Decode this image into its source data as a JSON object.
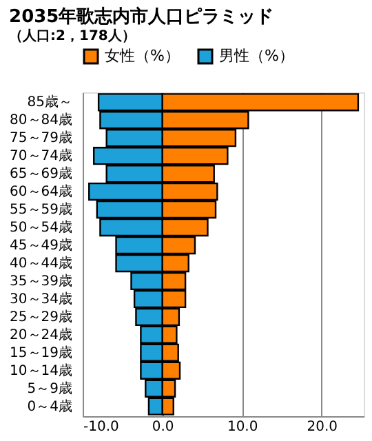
{
  "chart_data": {
    "type": "bar",
    "orientation": "horizontal",
    "title": "2035年歌志内市人口ピラミッド",
    "subtitle": "（人口:2，178人）",
    "categories": [
      "85歳～",
      "80～84歳",
      "75～79歳",
      "70～74歳",
      "65～69歳",
      "60～64歳",
      "55～59歳",
      "50～54歳",
      "45～49歳",
      "40～44歳",
      "35～39歳",
      "30～34歳",
      "25～29歳",
      "20～24歳",
      "15～19歳",
      "10～14歳",
      "5～9歳",
      "0～4歳"
    ],
    "series": [
      {
        "name": "女性（%）",
        "color": "#ff8000",
        "values": [
          24.6,
          10.8,
          9.2,
          8.2,
          6.5,
          6.9,
          6.7,
          5.7,
          4.1,
          3.3,
          2.9,
          2.9,
          2.1,
          1.8,
          2.0,
          2.2,
          1.6,
          1.4
        ]
      },
      {
        "name": "男性（%）",
        "color": "#1ea0d8",
        "values": [
          -8.0,
          -7.8,
          -7.0,
          -8.6,
          -7.0,
          -9.2,
          -8.2,
          -7.8,
          -5.8,
          -5.8,
          -3.9,
          -3.5,
          -3.3,
          -2.7,
          -2.7,
          -2.7,
          -2.1,
          -1.7
        ]
      }
    ],
    "xlim": [
      -10,
      25.3
    ],
    "xticks": [
      {
        "value": -10,
        "label": "-10.0"
      },
      {
        "value": 0,
        "label": "0.0"
      },
      {
        "value": 10,
        "label": "10.0"
      },
      {
        "value": 20,
        "label": "20.0"
      }
    ],
    "grid": "x",
    "legend": "top",
    "stacked": true
  }
}
